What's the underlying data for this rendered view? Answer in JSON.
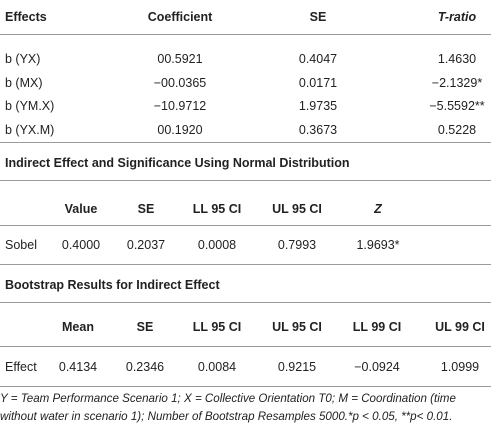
{
  "effects_table": {
    "header": [
      "Effects",
      "Coefficient",
      "SE",
      "T-ratio"
    ],
    "rows": [
      [
        "b (YX)",
        "00.5921",
        "0.4047",
        "1.4630"
      ],
      [
        "b (MX)",
        "−00.0365",
        "0.0171",
        "−2.1329*"
      ],
      [
        "b (YM.X)",
        "−10.9712",
        "1.9735",
        "−5.5592**"
      ],
      [
        "b (YX.M)",
        "00.1920",
        "0.3673",
        "0.5228"
      ]
    ]
  },
  "indirect_table": {
    "title": "Indirect Effect and Significance Using Normal Distribution",
    "header": [
      "Value",
      "SE",
      "LL 95 CI",
      "UL 95 CI",
      "Z"
    ],
    "rows": [
      [
        "Sobel",
        "0.4000",
        "0.2037",
        "0.0008",
        "0.7993",
        "1.9693*"
      ]
    ]
  },
  "bootstrap_table": {
    "title": "Bootstrap Results for Indirect Effect",
    "header": [
      "Mean",
      "SE",
      "LL 95 CI",
      "UL 95 CI",
      "LL 99 CI",
      "UL 99 CI"
    ],
    "rows": [
      [
        "Effect",
        "0.4134",
        "0.2346",
        "0.0084",
        "0.9215",
        "−0.0924",
        "1.0999"
      ]
    ]
  },
  "footnote": "Y = Team Performance Scenario 1; X = Collective Orientation T0; M = Coordination (time without water in scenario 1); Number of Bootstrap Resamples 5000.*p < 0.05, **p< 0.01."
}
